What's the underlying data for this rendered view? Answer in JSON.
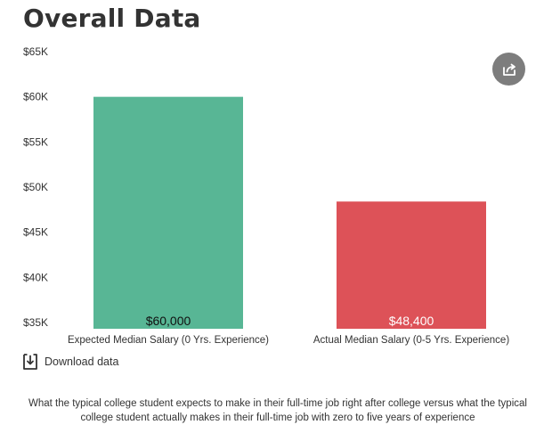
{
  "title": "Overall Data",
  "chart_data": {
    "type": "bar",
    "categories": [
      "Expected Median Salary (0 Yrs. Experience)",
      "Actual Median Salary (0-5 Yrs. Experience)"
    ],
    "values": [
      60000,
      48400
    ],
    "value_labels": [
      "$60,000",
      "$48,400"
    ],
    "colors": [
      "#58b695",
      "#dd5258"
    ],
    "value_label_colors": [
      "#111111",
      "#ffffff"
    ],
    "ylim": [
      35000,
      65000
    ],
    "yticks": [
      35000,
      40000,
      45000,
      50000,
      55000,
      60000,
      65000
    ],
    "ytick_labels": [
      "$35K",
      "$40K",
      "$45K",
      "$50K",
      "$55K",
      "$60K",
      "$65K"
    ],
    "grid": false,
    "legend": "none"
  },
  "share_icon": "share-icon",
  "download": {
    "icon": "download-icon",
    "label": "Download data"
  },
  "caption": "What the typical college student expects to make in their full-time job right after college versus what the typical college student actually makes in their full-time job with zero to five years of experience"
}
